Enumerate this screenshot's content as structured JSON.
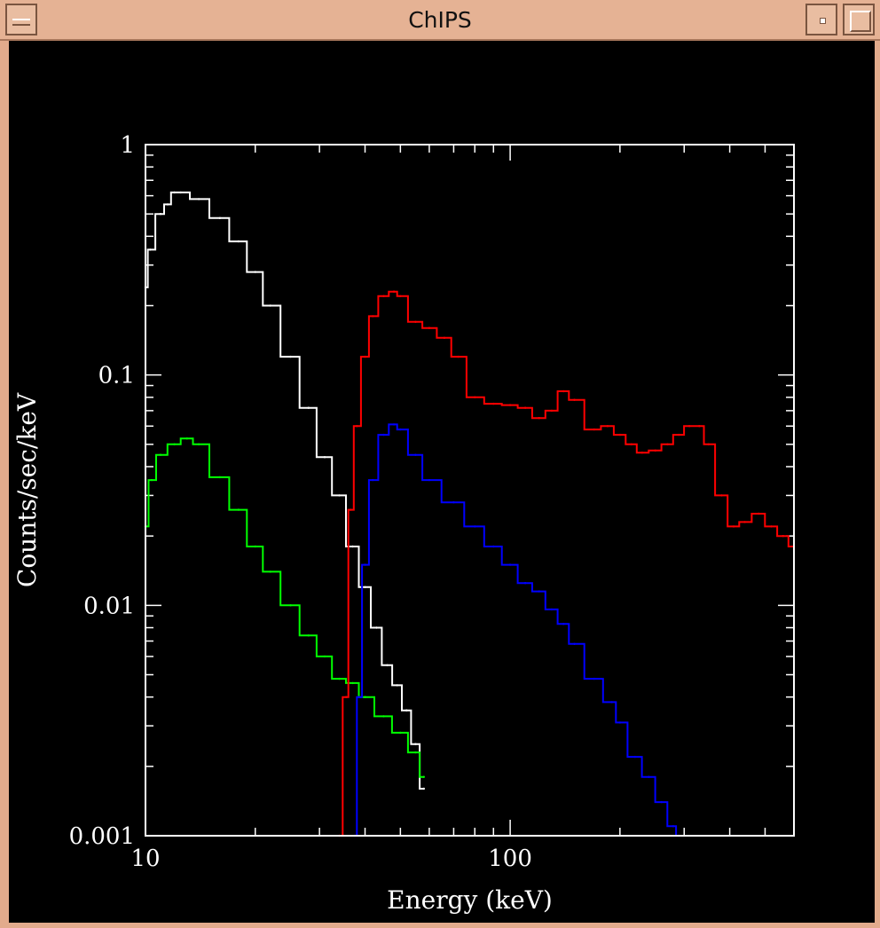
{
  "window": {
    "title": "ChIPS"
  },
  "chart_data": {
    "type": "line",
    "xlabel": "Energy (keV)",
    "ylabel": "Counts/sec/keV",
    "xscale": "log",
    "yscale": "log",
    "xlim": [
      10,
      600
    ],
    "ylim": [
      0.001,
      1
    ],
    "xticks": [
      10,
      100
    ],
    "xtick_labels": [
      "10",
      "100"
    ],
    "yticks": [
      1,
      0.1,
      0.01,
      0.001
    ],
    "ytick_labels": [
      "1",
      "0.1",
      "0.01",
      "0.001"
    ],
    "background": "#000000",
    "axis_color": "#ffffff",
    "grid": false,
    "legend": "none",
    "series": [
      {
        "color": "#ffffff",
        "x": [
          10,
          10.3,
          11,
          11.5,
          12,
          12.5,
          14,
          16,
          18,
          20,
          22,
          25,
          28,
          31,
          34,
          37,
          40,
          43,
          46,
          49,
          52,
          55,
          58
        ],
        "y": [
          0.24,
          0.35,
          0.5,
          0.55,
          0.62,
          0.62,
          0.58,
          0.48,
          0.38,
          0.28,
          0.2,
          0.12,
          0.072,
          0.044,
          0.03,
          0.018,
          0.012,
          0.008,
          0.0055,
          0.0045,
          0.0035,
          0.0025,
          0.0016
        ]
      },
      {
        "color": "#00ff00",
        "x": [
          10,
          10.4,
          11,
          12,
          13,
          14,
          16,
          18,
          20,
          22,
          25,
          28,
          31,
          34,
          37,
          40,
          45,
          50,
          55,
          58
        ],
        "y": [
          0.022,
          0.035,
          0.045,
          0.05,
          0.053,
          0.05,
          0.036,
          0.026,
          0.018,
          0.014,
          0.01,
          0.0074,
          0.006,
          0.0048,
          0.0046,
          0.004,
          0.0033,
          0.0028,
          0.0023,
          0.0018
        ]
      },
      {
        "color": "#ff0000",
        "x": [
          34,
          35.5,
          36.5,
          38,
          40,
          42,
          45,
          48,
          50,
          55,
          60,
          66,
          72,
          80,
          90,
          100,
          110,
          120,
          130,
          140,
          150,
          170,
          185,
          200,
          215,
          230,
          250,
          270,
          290,
          310,
          330,
          350,
          380,
          410,
          440,
          480,
          520,
          560,
          600
        ],
        "y": [
          0.001,
          0.004,
          0.026,
          0.06,
          0.12,
          0.18,
          0.22,
          0.23,
          0.22,
          0.17,
          0.16,
          0.145,
          0.12,
          0.08,
          0.075,
          0.074,
          0.072,
          0.065,
          0.07,
          0.085,
          0.078,
          0.058,
          0.06,
          0.055,
          0.05,
          0.046,
          0.047,
          0.05,
          0.055,
          0.06,
          0.06,
          0.05,
          0.03,
          0.022,
          0.023,
          0.025,
          0.022,
          0.02,
          0.018
        ]
      },
      {
        "color": "#0000ff",
        "x": [
          37.5,
          38.5,
          40,
          42,
          45,
          48,
          50,
          55,
          60,
          70,
          80,
          90,
          100,
          110,
          120,
          130,
          140,
          150,
          170,
          190,
          200,
          220,
          240,
          260,
          280,
          290
        ],
        "y": [
          0.001,
          0.004,
          0.015,
          0.035,
          0.055,
          0.061,
          0.058,
          0.045,
          0.035,
          0.028,
          0.022,
          0.018,
          0.015,
          0.0125,
          0.0115,
          0.0096,
          0.0083,
          0.0068,
          0.0048,
          0.0038,
          0.0031,
          0.0022,
          0.0018,
          0.0014,
          0.0011,
          0.001
        ]
      }
    ]
  }
}
